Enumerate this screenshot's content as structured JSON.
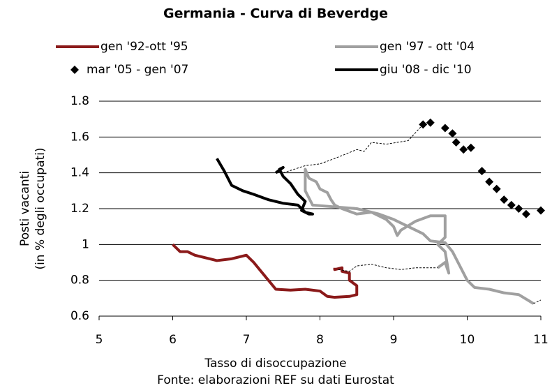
{
  "chart_data": {
    "type": "line",
    "title": "Germania - Curva di Beverdge",
    "xlabel": "Tasso di disoccupazione",
    "ylabel": [
      "Posti vacanti",
      "(in % degli occupati)"
    ],
    "source": "Fonte: elaborazioni REF su dati Eurostat",
    "xlim": [
      5,
      11
    ],
    "ylim": [
      0.6,
      1.8
    ],
    "xticks": [
      5,
      6,
      7,
      8,
      9,
      10,
      11
    ],
    "yticks": [
      0.6,
      0.8,
      1,
      1.2,
      1.4,
      1.6,
      1.8
    ],
    "grid": true,
    "series": [
      {
        "name": "gen '92-ott '95",
        "color": "#8b1a1a",
        "style": "line",
        "x": [
          6.0,
          6.1,
          6.2,
          6.3,
          6.5,
          6.6,
          6.8,
          7.0,
          7.1,
          7.2,
          7.3,
          7.4,
          7.6,
          7.8,
          8.0,
          8.1,
          8.2,
          8.4,
          8.5,
          8.5,
          8.4,
          8.4,
          8.3,
          8.3,
          8.2,
          8.2
        ],
        "values": [
          1.0,
          0.96,
          0.96,
          0.94,
          0.92,
          0.91,
          0.92,
          0.94,
          0.9,
          0.85,
          0.8,
          0.75,
          0.745,
          0.75,
          0.74,
          0.71,
          0.705,
          0.71,
          0.72,
          0.77,
          0.8,
          0.84,
          0.85,
          0.87,
          0.86,
          0.87
        ]
      },
      {
        "name": "gen '97 - ott '04",
        "color": "#a0a0a0",
        "style": "line",
        "x": [
          9.6,
          9.7,
          9.75,
          9.7,
          9.6,
          9.7,
          9.7,
          9.5,
          9.3,
          9.1,
          9.05,
          9.0,
          8.9,
          8.7,
          8.5,
          8.3,
          8.2,
          8.15,
          8.1,
          8.0,
          7.95,
          7.85,
          7.8,
          7.8,
          7.9,
          8.2,
          8.5,
          8.8,
          9.0,
          9.2,
          9.4,
          9.5,
          9.7,
          9.8,
          9.9,
          10.0,
          10.1,
          10.3,
          10.5,
          10.7,
          10.9
        ],
        "values": [
          0.87,
          0.9,
          0.84,
          0.96,
          1.0,
          1.04,
          1.16,
          1.16,
          1.13,
          1.08,
          1.05,
          1.1,
          1.14,
          1.18,
          1.17,
          1.2,
          1.22,
          1.25,
          1.29,
          1.31,
          1.35,
          1.37,
          1.42,
          1.3,
          1.22,
          1.21,
          1.2,
          1.17,
          1.14,
          1.1,
          1.06,
          1.02,
          1.01,
          0.96,
          0.88,
          0.8,
          0.76,
          0.75,
          0.73,
          0.72,
          0.67
        ]
      },
      {
        "name": "mar '05 - gen '07",
        "color": "#000000",
        "style": "marker",
        "x": [
          11.0,
          10.8,
          10.7,
          10.6,
          10.5,
          10.4,
          10.3,
          10.2,
          10.05,
          9.95,
          9.85,
          9.8,
          9.7,
          9.5,
          9.4
        ],
        "values": [
          1.19,
          1.17,
          1.2,
          1.22,
          1.25,
          1.31,
          1.35,
          1.41,
          1.54,
          1.53,
          1.57,
          1.62,
          1.65,
          1.68,
          1.67
        ]
      },
      {
        "name": "giu '08 - dic '10",
        "color": "#000000",
        "style": "line",
        "x": [
          7.4,
          7.5,
          7.45,
          7.5,
          7.6,
          7.7,
          7.8,
          7.75,
          7.85,
          7.9,
          7.8,
          7.7,
          7.5,
          7.3,
          7.1,
          6.95,
          6.8,
          6.75,
          6.7,
          6.6
        ],
        "values": [
          1.4,
          1.43,
          1.42,
          1.38,
          1.34,
          1.28,
          1.24,
          1.19,
          1.17,
          1.17,
          1.18,
          1.22,
          1.23,
          1.25,
          1.28,
          1.3,
          1.33,
          1.37,
          1.41,
          1.48
        ]
      },
      {
        "color": "#000000",
        "style": "dashed",
        "x": [
          8.25,
          8.4,
          8.5,
          8.7,
          8.9,
          9.1,
          9.3,
          9.5,
          9.6,
          null,
          10.9,
          11.0,
          null,
          9.4,
          9.2,
          8.9,
          8.7,
          8.6,
          8.5,
          8.2,
          8.0,
          7.8,
          7.5
        ],
        "values": [
          0.86,
          0.85,
          0.88,
          0.89,
          0.87,
          0.86,
          0.87,
          0.87,
          0.87,
          null,
          0.67,
          0.69,
          null,
          1.67,
          1.58,
          1.56,
          1.57,
          1.52,
          1.53,
          1.48,
          1.45,
          1.44,
          1.4
        ]
      }
    ]
  }
}
